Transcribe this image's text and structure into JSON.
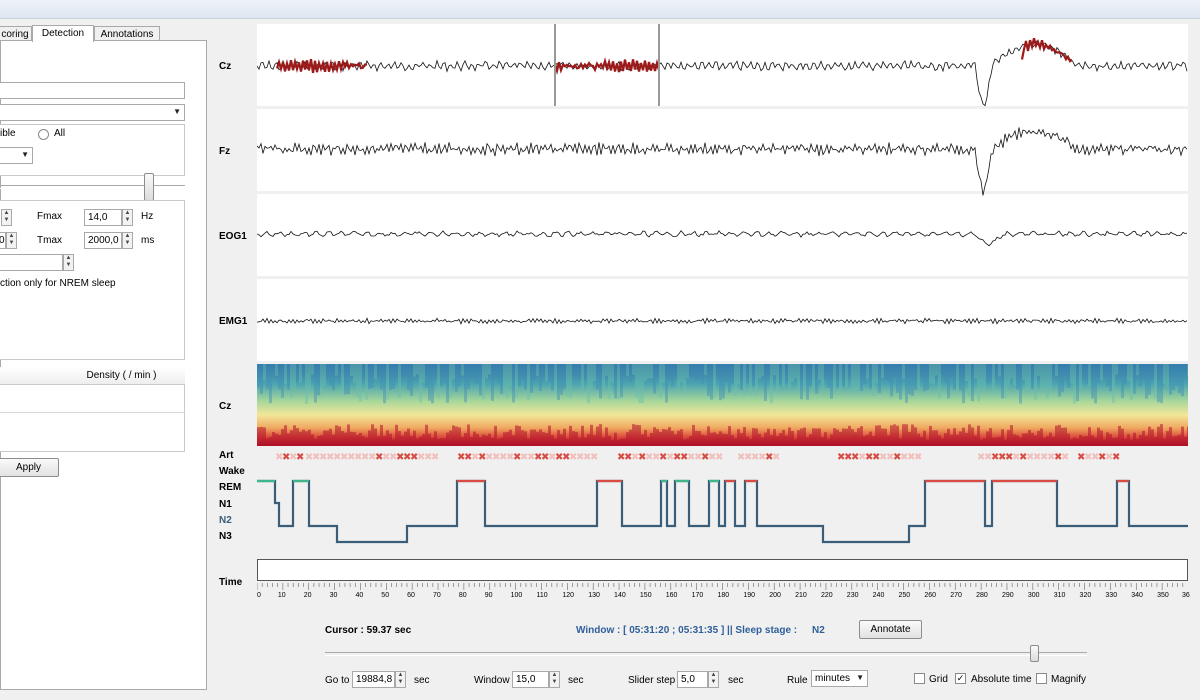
{
  "tabs": [
    {
      "label": "coring",
      "active": false
    },
    {
      "label": "Detection",
      "active": true
    },
    {
      "label": "Annotations",
      "active": false
    }
  ],
  "panel": {
    "radio_visible_label": "ible",
    "radio_all_label": "All",
    "fmax_label": "Fmax",
    "fmax_value": "14,0",
    "fmax_unit": "Hz",
    "tmax_label": "Tmax",
    "tmax_value": "2000,0",
    "tmax_unit": "ms",
    "tmin_value": "0",
    "nrem_label": "ction only for NREM sleep",
    "density_header": "Density ( / min )",
    "apply_label": "Apply"
  },
  "channels": [
    "Cz",
    "Fz",
    "EOG1",
    "EMG1",
    "Cz"
  ],
  "hypnogram_labels": [
    "Art",
    "Wake",
    "REM",
    "N1",
    "N2",
    "N3"
  ],
  "time_label": "Time",
  "time_ticks": [
    "0",
    "10",
    "20",
    "30",
    "40",
    "50",
    "60",
    "70",
    "80",
    "90",
    "100",
    "110",
    "120",
    "130",
    "140",
    "150",
    "160",
    "170",
    "180",
    "190",
    "200",
    "210",
    "220",
    "230",
    "240",
    "250",
    "260",
    "270",
    "280",
    "290",
    "300",
    "310",
    "320",
    "330",
    "340",
    "350",
    "36"
  ],
  "status": {
    "cursor": "Cursor : 59.37 sec",
    "window": "Window : [ 05:31:20 ; 05:31:35 ] || Sleep stage :",
    "stage": "N2",
    "annotate_label": "Annotate"
  },
  "controls": {
    "goto_label": "Go to",
    "goto_value": "19884,8",
    "goto_unit": "sec",
    "window_label": "Window",
    "window_value": "15,0",
    "window_unit": "sec",
    "slider_step_label": "Slider step",
    "slider_step_value": "5,0",
    "slider_step_unit": "sec",
    "rule_label": "Rule",
    "rule_value": "minutes",
    "grid_label": "Grid",
    "grid_checked": false,
    "absolute_time_label": "Absolute time",
    "absolute_time_checked": true,
    "magnify_label": "Magnify",
    "magnify_checked": false,
    "time_slider_position": 0.93
  },
  "colors": {
    "spindle": "#9c1a1a",
    "hyp_wake": "#d84c43",
    "hyp_rem": "#3fb58a",
    "hyp_n1": "#8fb7d6",
    "hyp_n2": "#3a5d7a",
    "hyp_n3": "#1c2d42",
    "status_blue": "#2f5f9a"
  }
}
